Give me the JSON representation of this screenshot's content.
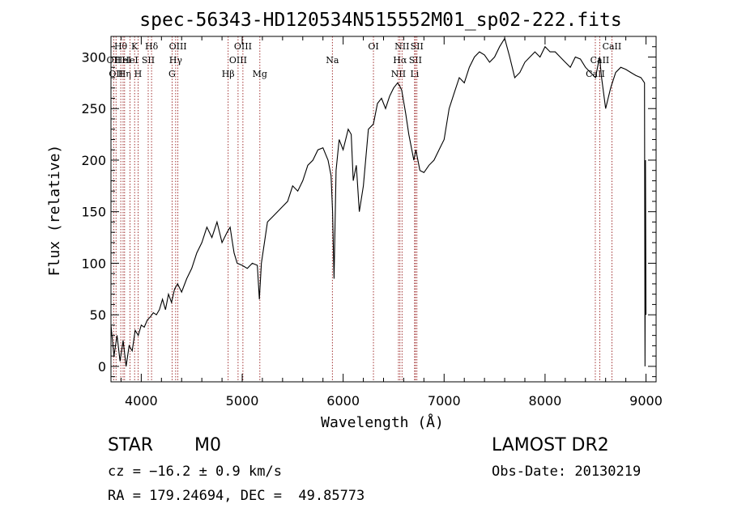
{
  "chart_data": {
    "type": "line",
    "title": "spec-56343-HD120534N515552M01_sp02-222.fits",
    "xlabel": "Wavelength (Å)",
    "ylabel": "Flux (relative)",
    "xlim": [
      3700,
      9100
    ],
    "ylim": [
      -15,
      320
    ],
    "xticks": [
      4000,
      5000,
      6000,
      7000,
      8000,
      9000
    ],
    "yticks": [
      0,
      50,
      100,
      150,
      200,
      250,
      300
    ],
    "grid": false,
    "line_color": "#000000",
    "marker_color": "#8b0000",
    "series": [
      {
        "x": [
          3700,
          3730,
          3760,
          3790,
          3820,
          3850,
          3880,
          3910,
          3940,
          3970,
          4000,
          4030,
          4060,
          4090,
          4120,
          4150,
          4180,
          4210,
          4240,
          4270,
          4300,
          4330,
          4360,
          4400,
          4450,
          4500,
          4550,
          4600,
          4650,
          4700,
          4750,
          4800,
          4850,
          4880,
          4900,
          4920,
          4950,
          5000,
          5050,
          5100,
          5150,
          5170,
          5190,
          5250,
          5300,
          5350,
          5400,
          5450,
          5500,
          5550,
          5600,
          5650,
          5700,
          5750,
          5800,
          5850,
          5880,
          5895,
          5910,
          5930,
          5960,
          6000,
          6050,
          6080,
          6100,
          6130,
          6160,
          6200,
          6250,
          6300,
          6340,
          6380,
          6420,
          6460,
          6500,
          6540,
          6560,
          6580,
          6620,
          6650,
          6700,
          6720,
          6760,
          6800,
          6850,
          6900,
          6950,
          7000,
          7050,
          7100,
          7150,
          7200,
          7250,
          7300,
          7350,
          7400,
          7450,
          7500,
          7550,
          7600,
          7650,
          7700,
          7750,
          7800,
          7850,
          7900,
          7950,
          8000,
          8050,
          8100,
          8150,
          8200,
          8250,
          8300,
          8350,
          8400,
          8450,
          8500,
          8540,
          8560,
          8600,
          8650,
          8700,
          8750,
          8800,
          8850,
          8900,
          8950,
          8985,
          8990,
          8995,
          9000
        ],
        "y": [
          40,
          10,
          30,
          5,
          25,
          0,
          20,
          15,
          35,
          30,
          40,
          38,
          45,
          48,
          52,
          50,
          55,
          65,
          55,
          70,
          62,
          75,
          80,
          72,
          85,
          95,
          110,
          120,
          135,
          125,
          140,
          120,
          130,
          135,
          122,
          110,
          100,
          98,
          95,
          100,
          98,
          65,
          100,
          140,
          145,
          150,
          155,
          160,
          175,
          170,
          180,
          195,
          200,
          210,
          212,
          200,
          185,
          150,
          85,
          190,
          220,
          210,
          230,
          225,
          180,
          195,
          150,
          175,
          230,
          235,
          255,
          260,
          250,
          262,
          270,
          275,
          272,
          268,
          245,
          225,
          200,
          210,
          190,
          188,
          195,
          200,
          210,
          220,
          250,
          265,
          280,
          275,
          290,
          300,
          305,
          302,
          295,
          300,
          310,
          318,
          300,
          280,
          285,
          295,
          300,
          305,
          300,
          310,
          305,
          305,
          300,
          295,
          290,
          300,
          298,
          290,
          285,
          280,
          300,
          280,
          250,
          270,
          285,
          290,
          288,
          285,
          282,
          280,
          275,
          0,
          200,
          50
        ]
      }
    ],
    "lines": [
      {
        "x": 3727,
        "label": "OII",
        "row": 1
      },
      {
        "x": 3750,
        "label": "OII",
        "row": 2
      },
      {
        "x": 3797,
        "label": "Hθ",
        "row": 0
      },
      {
        "x": 3820,
        "label": "HeI",
        "row": 1
      },
      {
        "x": 3835,
        "label": "Hη",
        "row": 2
      },
      {
        "x": 3889,
        "label": "HeI",
        "row": 1
      },
      {
        "x": 3934,
        "label": "K",
        "row": 0
      },
      {
        "x": 3968,
        "label": "H",
        "row": 2
      },
      {
        "x": 4069,
        "label": "SII",
        "row": 1
      },
      {
        "x": 4102,
        "label": "Hδ",
        "row": 0
      },
      {
        "x": 4305,
        "label": "G",
        "row": 2
      },
      {
        "x": 4341,
        "label": "Hγ",
        "row": 1
      },
      {
        "x": 4363,
        "label": "OIII",
        "row": 0
      },
      {
        "x": 4861,
        "label": "Hβ",
        "row": 2
      },
      {
        "x": 4959,
        "label": "OIII",
        "row": 1
      },
      {
        "x": 5007,
        "label": "OIII",
        "row": 0
      },
      {
        "x": 5175,
        "label": "Mg",
        "row": 2
      },
      {
        "x": 5893,
        "label": "Na",
        "row": 1
      },
      {
        "x": 6300,
        "label": "OI",
        "row": 0
      },
      {
        "x": 6548,
        "label": "NII",
        "row": 2
      },
      {
        "x": 6563,
        "label": "Hα",
        "row": 1
      },
      {
        "x": 6583,
        "label": "NII",
        "row": 0
      },
      {
        "x": 6708,
        "label": "Li",
        "row": 2
      },
      {
        "x": 6716,
        "label": "SII",
        "row": 1
      },
      {
        "x": 6731,
        "label": "SII",
        "row": 0
      },
      {
        "x": 8498,
        "label": "CaII",
        "row": 2
      },
      {
        "x": 8542,
        "label": "CaII",
        "row": 1
      },
      {
        "x": 8662,
        "label": "CaII",
        "row": 0
      }
    ]
  },
  "info": {
    "object_class": "STAR",
    "subclass": "M0",
    "survey": "LAMOST DR2",
    "redshift": "cz = −16.2 ± 0.9 km/s",
    "obs_date": "Obs-Date: 20130219",
    "coords": "RA = 179.24694, DEC =  49.85773"
  }
}
